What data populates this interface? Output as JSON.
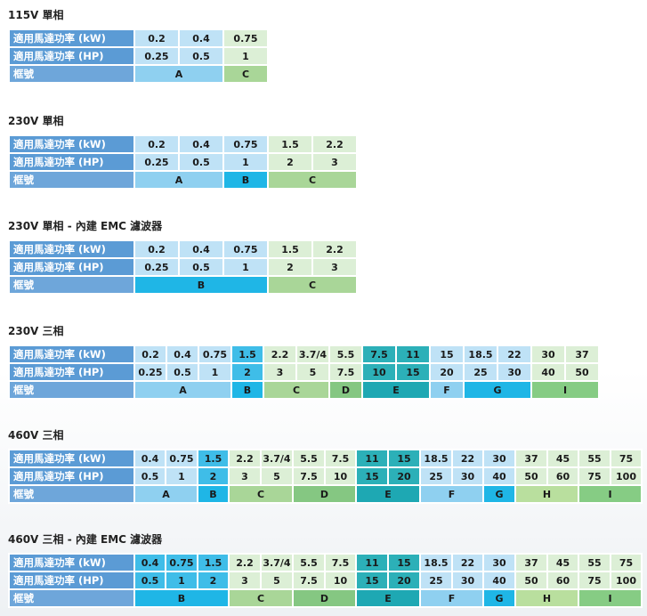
{
  "labels": {
    "kw": "適用馬達功率 (kW)",
    "hp": "適用馬達功率 (HP)",
    "frame": "框號"
  },
  "sections": [
    {
      "title": "115V 單相",
      "kw": [
        "0.2",
        "0.4",
        "0.75"
      ],
      "hp": [
        "0.25",
        "0.5",
        "1"
      ],
      "frames": [
        {
          "label": "A",
          "span": 2
        },
        {
          "label": "C",
          "span": 1
        }
      ]
    },
    {
      "title": "230V 單相",
      "kw": [
        "0.2",
        "0.4",
        "0.75",
        "1.5",
        "2.2"
      ],
      "hp": [
        "0.25",
        "0.5",
        "1",
        "2",
        "3"
      ],
      "frames": [
        {
          "label": "A",
          "span": 2
        },
        {
          "label": "B",
          "span": 1
        },
        {
          "label": "C",
          "span": 2
        }
      ]
    },
    {
      "title": "230V 單相 - 內建 EMC 濾波器",
      "kw": [
        "0.2",
        "0.4",
        "0.75",
        "1.5",
        "2.2"
      ],
      "hp": [
        "0.25",
        "0.5",
        "1",
        "2",
        "3"
      ],
      "frames": [
        {
          "label": "B",
          "span": 3
        },
        {
          "label": "C",
          "span": 2
        }
      ]
    },
    {
      "title": "230V 三相",
      "kw": [
        "0.2",
        "0.4",
        "0.75",
        "1.5",
        "2.2",
        "3.7/4",
        "5.5",
        "7.5",
        "11",
        "15",
        "18.5",
        "22",
        "30",
        "37"
      ],
      "hp": [
        "0.25",
        "0.5",
        "1",
        "2",
        "3",
        "5",
        "7.5",
        "10",
        "15",
        "20",
        "25",
        "30",
        "40",
        "50"
      ],
      "frames": [
        {
          "label": "A",
          "span": 3
        },
        {
          "label": "B",
          "span": 1
        },
        {
          "label": "C",
          "span": 2
        },
        {
          "label": "D",
          "span": 1
        },
        {
          "label": "E",
          "span": 2
        },
        {
          "label": "F",
          "span": 1
        },
        {
          "label": "G",
          "span": 2
        },
        {
          "label": "I",
          "span": 2
        }
      ]
    },
    {
      "title": "460V 三相",
      "kw": [
        "0.4",
        "0.75",
        "1.5",
        "2.2",
        "3.7/4",
        "5.5",
        "7.5",
        "11",
        "15",
        "18.5",
        "22",
        "30",
        "37",
        "45",
        "55",
        "75"
      ],
      "hp": [
        "0.5",
        "1",
        "2",
        "3",
        "5",
        "7.5",
        "10",
        "15",
        "20",
        "25",
        "30",
        "40",
        "50",
        "60",
        "75",
        "100"
      ],
      "frames": [
        {
          "label": "A",
          "span": 2
        },
        {
          "label": "B",
          "span": 1
        },
        {
          "label": "C",
          "span": 2
        },
        {
          "label": "D",
          "span": 2
        },
        {
          "label": "E",
          "span": 2
        },
        {
          "label": "F",
          "span": 2
        },
        {
          "label": "G",
          "span": 1
        },
        {
          "label": "H",
          "span": 2
        },
        {
          "label": "I",
          "span": 2
        }
      ]
    },
    {
      "title": "460V 三相 - 內建 EMC 濾波器",
      "kw": [
        "0.4",
        "0.75",
        "1.5",
        "2.2",
        "3.7/4",
        "5.5",
        "7.5",
        "11",
        "15",
        "18.5",
        "22",
        "30",
        "37",
        "45",
        "55",
        "75"
      ],
      "hp": [
        "0.5",
        "1",
        "2",
        "3",
        "5",
        "7.5",
        "10",
        "15",
        "20",
        "25",
        "30",
        "40",
        "50",
        "60",
        "75",
        "100"
      ],
      "frames": [
        {
          "label": "B",
          "span": 3
        },
        {
          "label": "C",
          "span": 2
        },
        {
          "label": "D",
          "span": 2
        },
        {
          "label": "E",
          "span": 2
        },
        {
          "label": "F",
          "span": 2
        },
        {
          "label": "G",
          "span": 1
        },
        {
          "label": "H",
          "span": 2
        },
        {
          "label": "I",
          "span": 2
        }
      ]
    }
  ]
}
